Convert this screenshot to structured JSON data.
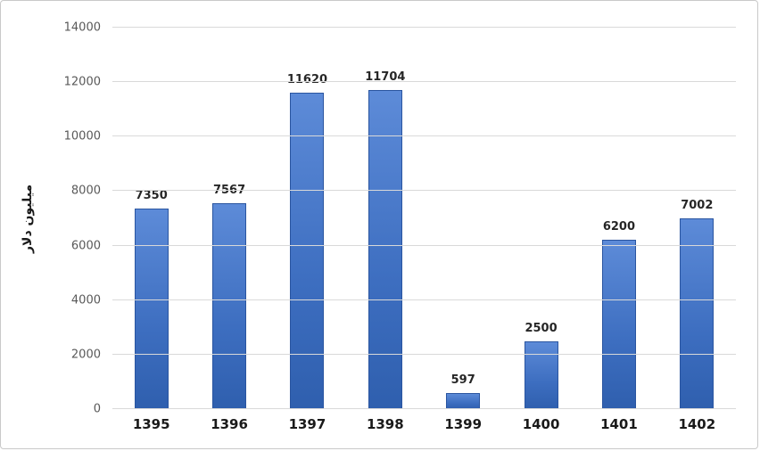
{
  "chart_data": {
    "type": "bar",
    "categories": [
      "1395",
      "1396",
      "1397",
      "1398",
      "1399",
      "1400",
      "1401",
      "1402"
    ],
    "values": [
      7350,
      7567,
      11620,
      11704,
      597,
      2500,
      6200,
      7002
    ],
    "title": "",
    "xlabel": "",
    "ylabel": "میلیون دلار",
    "ylim": [
      0,
      14000
    ],
    "ytick_step": 2000,
    "yticks": [
      "0",
      "2000",
      "4000",
      "6000",
      "8000",
      "10000",
      "12000",
      "14000"
    ],
    "grid": "horizontal",
    "legend": "none",
    "bar_color_top": "#5d8bd8",
    "bar_color_mid": "#3d6ec0",
    "bar_color_bottom": "#2f5fae",
    "bar_border_color": "#2a55a0",
    "gridline_color": "#d9d9d9",
    "tick_label_color": "#595959",
    "value_label_color": "#262626"
  }
}
